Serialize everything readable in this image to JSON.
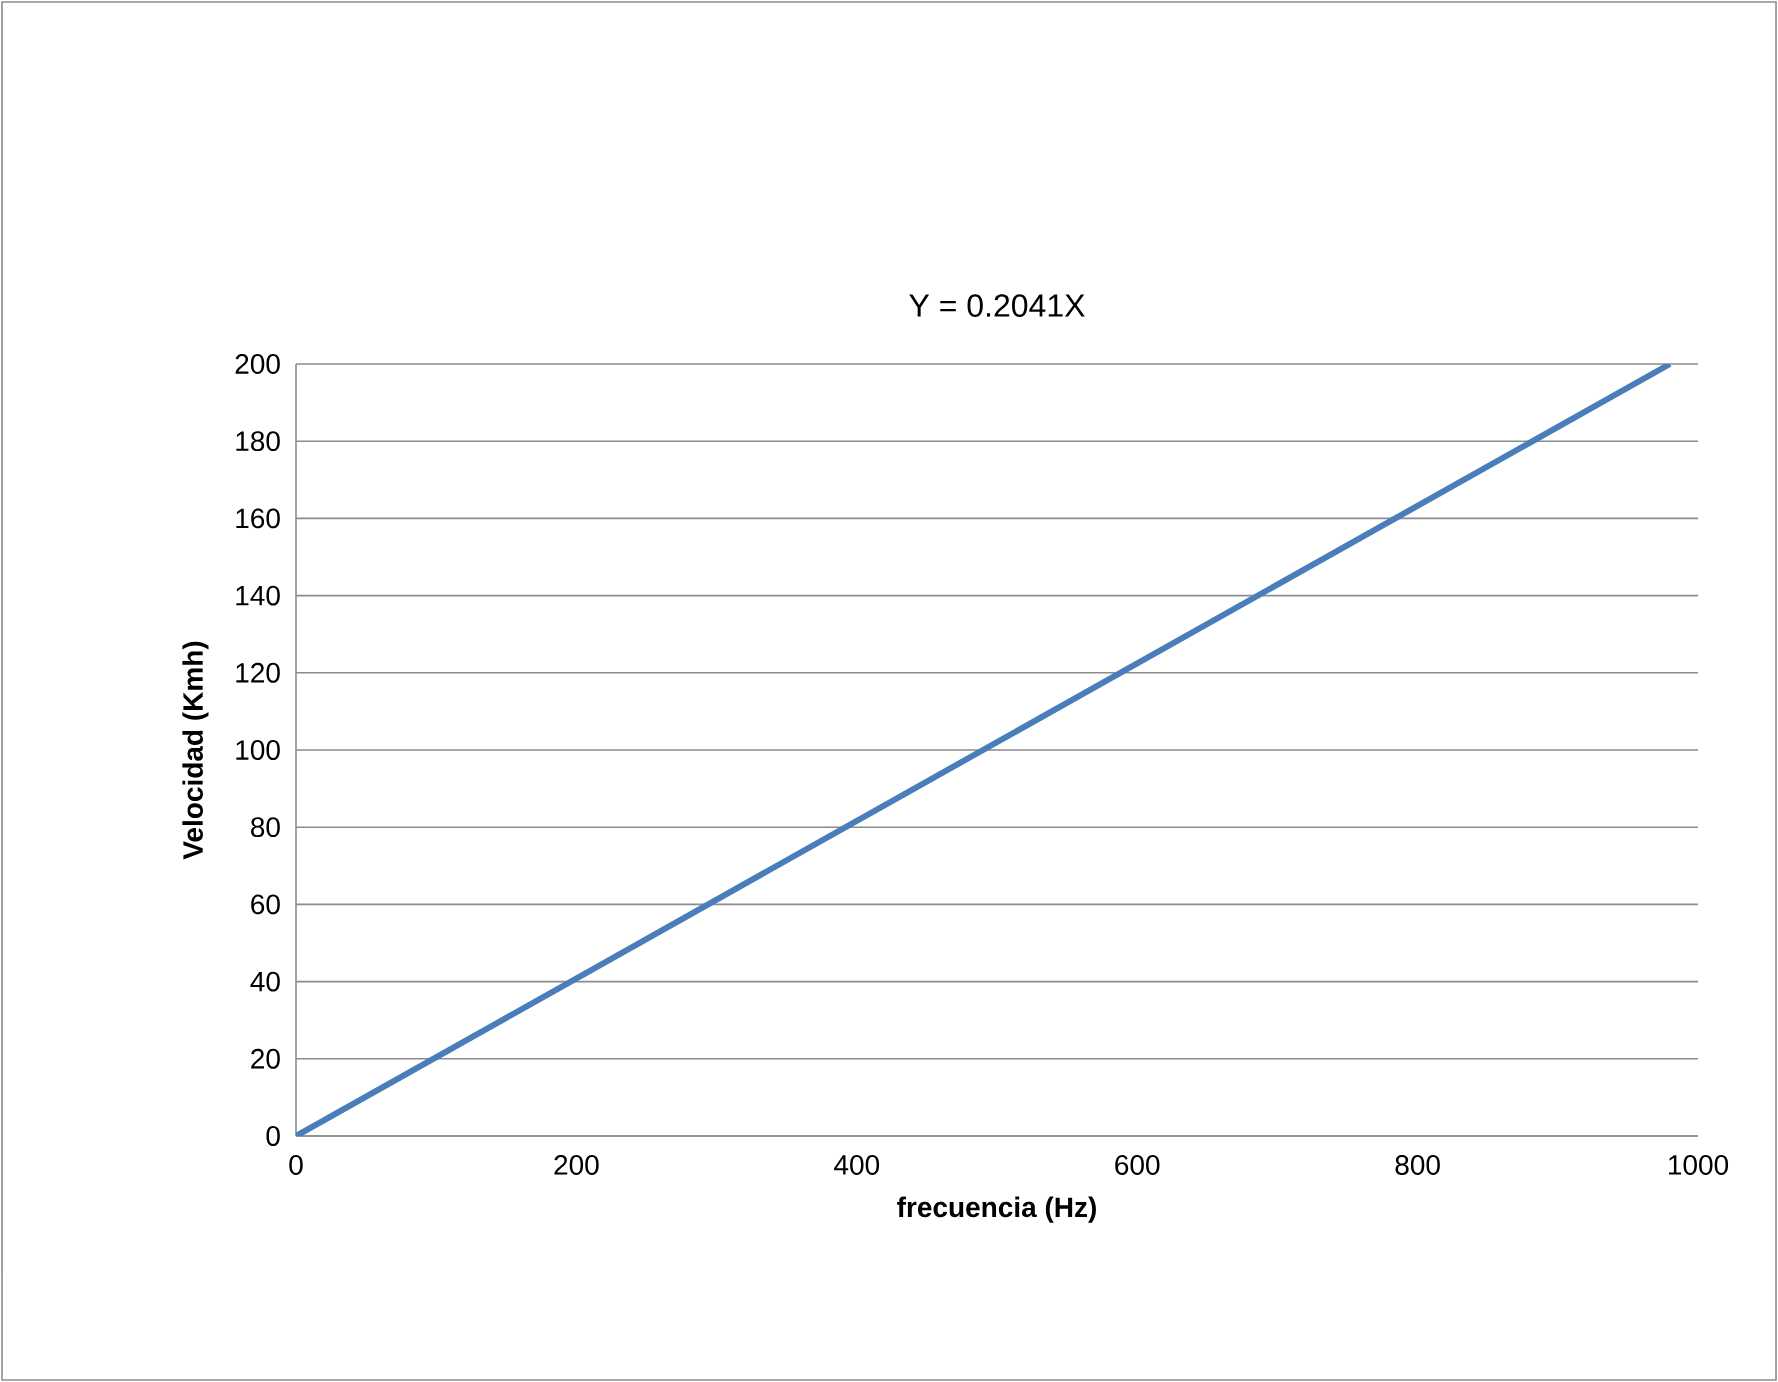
{
  "chart_data": {
    "type": "line",
    "title": "Y = 0.2041X",
    "xlabel": "frecuencia (Hz)",
    "ylabel": "Velocidad (Kmh)",
    "x": [
      0,
      980
    ],
    "series": [
      {
        "color": "#4a7ebb",
        "values": [
          0,
          200
        ]
      }
    ],
    "xlim": [
      0,
      1000
    ],
    "xticks": [
      0,
      200,
      400,
      600,
      800,
      1000
    ],
    "ylim": [
      0,
      200
    ],
    "yticks": [
      0,
      20,
      40,
      60,
      80,
      100,
      120,
      140,
      160,
      180,
      200
    ],
    "grid": "y"
  }
}
